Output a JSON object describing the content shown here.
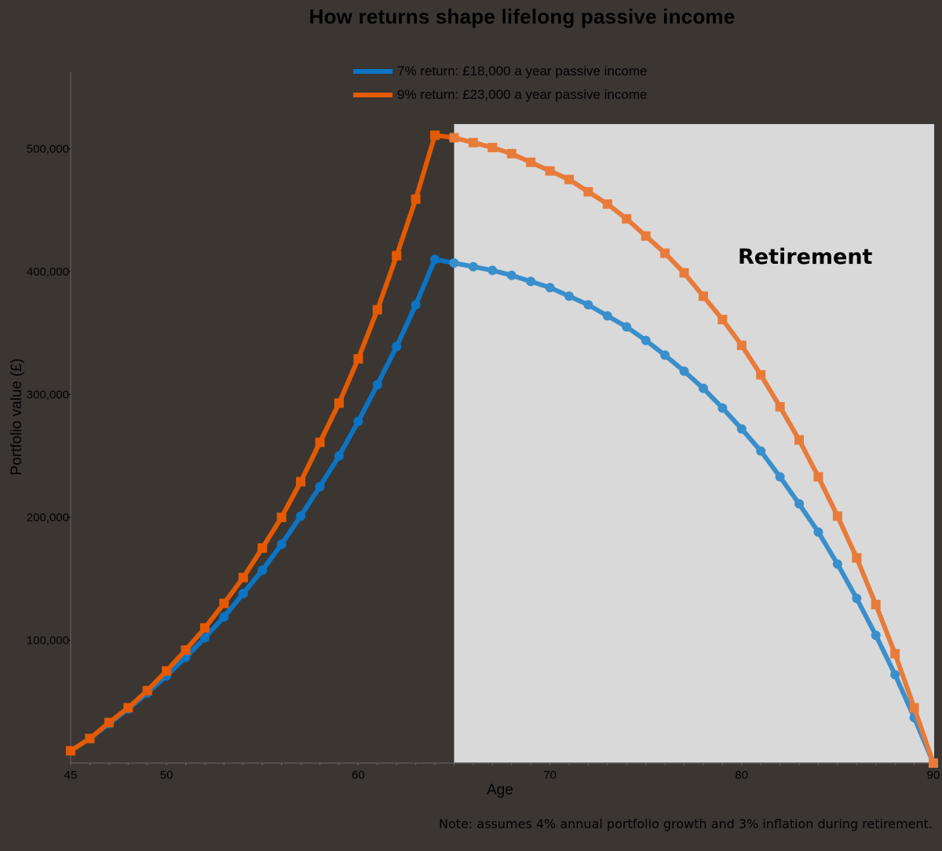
{
  "title": "How returns shape lifelong passive income",
  "legend": [
    {
      "label": "7% return: £18,000 a year passive income",
      "color": "#0b74c4"
    },
    {
      "label": "9% return: £23,000 a year passive income",
      "color": "#e55a00"
    }
  ],
  "annotation": "Retirement",
  "note": "Note: assumes 4% annual portfolio growth and 3% inflation during retirement.",
  "colors": {
    "background": "#3c3633",
    "retirement_panel": "#d9d9d9",
    "blue": "#0b74c4",
    "orange": "#e55a00"
  },
  "chart_data": {
    "type": "line",
    "title": "How returns shape lifelong passive income",
    "xlabel": "Age",
    "ylabel": "Portfolio value (£)",
    "xlim": [
      45,
      90
    ],
    "ylim": [
      0,
      550000
    ],
    "x_ticks": [
      45,
      50,
      60,
      70,
      80,
      90
    ],
    "y_ticks": [
      "100,000",
      "200,000",
      "300,000",
      "400,000",
      "500,000"
    ],
    "y_tick_values": [
      100000,
      200000,
      300000,
      400000,
      500000
    ],
    "grid": false,
    "legend_position": "top",
    "shaded_region": {
      "label": "Retirement",
      "x_start": 65,
      "x_end": 90
    },
    "x": [
      45,
      46,
      47,
      48,
      49,
      50,
      51,
      52,
      53,
      54,
      55,
      56,
      57,
      58,
      59,
      60,
      61,
      62,
      63,
      64,
      65,
      66,
      67,
      68,
      69,
      70,
      71,
      72,
      73,
      74,
      75,
      76,
      77,
      78,
      79,
      80,
      81,
      82,
      83,
      84,
      85,
      86,
      87,
      88,
      89,
      90
    ],
    "series": [
      {
        "name": "7% return: £18,000 a year passive income",
        "marker": "circle",
        "values": [
          10000,
          20000,
          32000,
          44000,
          57000,
          71000,
          86000,
          102000,
          119000,
          138000,
          157000,
          178000,
          201000,
          225000,
          250000,
          278000,
          308000,
          339000,
          373000,
          410000,
          407000,
          404000,
          401000,
          397000,
          392000,
          387000,
          380000,
          373000,
          364000,
          355000,
          344000,
          332000,
          319000,
          305000,
          289000,
          272000,
          254000,
          233000,
          211000,
          188000,
          162000,
          134000,
          104000,
          72000,
          37000,
          0
        ]
      },
      {
        "name": "9% return: £23,000 a year passive income",
        "marker": "square",
        "values": [
          10000,
          20000,
          33000,
          45000,
          59000,
          75000,
          92000,
          110000,
          130000,
          151000,
          175000,
          200000,
          229000,
          261000,
          293000,
          329000,
          369000,
          413000,
          459000,
          511000,
          509000,
          505000,
          501000,
          496000,
          489000,
          482000,
          475000,
          465000,
          455000,
          443000,
          429000,
          415000,
          399000,
          380000,
          361000,
          340000,
          316000,
          290000,
          263000,
          233000,
          201000,
          167000,
          129000,
          89000,
          45000,
          0
        ]
      }
    ]
  }
}
